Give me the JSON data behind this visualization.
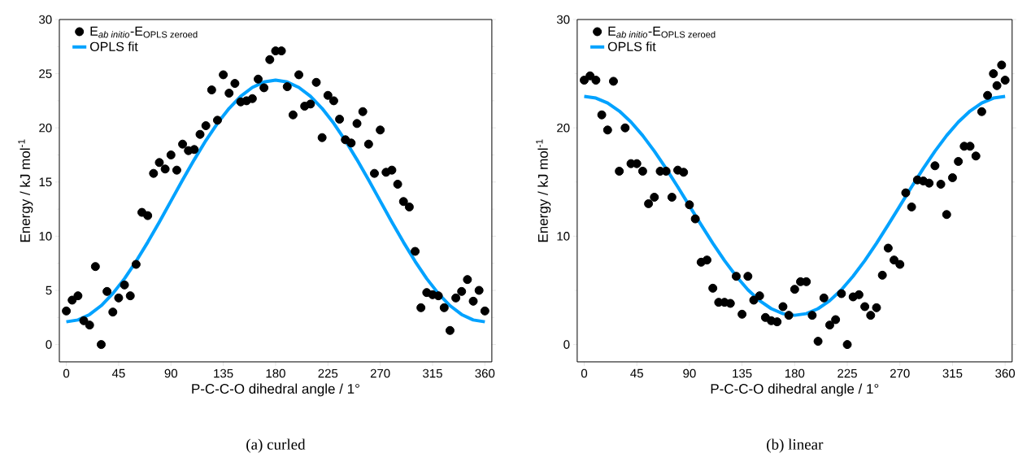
{
  "chart_data": [
    {
      "type": "scatter",
      "xlabel": "P-C-C-O dihedral angle / 1°",
      "ylabel": "Energy / kJ mol$^{-1}$",
      "xlim": [
        -6,
        366
      ],
      "ylim": [
        -1.6,
        30
      ],
      "xticks": [
        0,
        45,
        90,
        135,
        180,
        225,
        270,
        315,
        360
      ],
      "yticks": [
        0,
        5,
        10,
        15,
        20,
        25,
        30
      ],
      "legend": "top left",
      "grid": false,
      "annotations": [
        "(a) curled"
      ],
      "series": [
        {
          "name": "\\text{E}_{\\text{\\itshape ab initio}}\\text{-E}_{\\text{OPLS zeroed}}",
          "marker": "circle",
          "color": "#000000",
          "x": [
            0,
            5,
            10,
            15,
            20,
            25,
            30,
            35,
            40,
            45,
            50,
            55,
            60,
            65,
            70,
            75,
            80,
            85,
            90,
            95,
            100,
            105,
            110,
            115,
            120,
            125,
            130,
            135,
            140,
            145,
            150,
            155,
            160,
            165,
            170,
            175,
            180,
            185,
            190,
            195,
            200,
            205,
            210,
            215,
            220,
            225,
            230,
            235,
            240,
            245,
            250,
            255,
            260,
            265,
            270,
            275,
            280,
            285,
            290,
            295,
            300,
            305,
            310,
            315,
            320,
            325,
            330,
            335,
            340,
            345,
            350,
            355,
            360
          ],
          "values": [
            3.1,
            4.1,
            4.5,
            2.2,
            1.8,
            7.2,
            0.0,
            4.9,
            3.0,
            4.3,
            5.5,
            4.5,
            7.4,
            12.2,
            11.9,
            15.8,
            16.8,
            16.2,
            17.5,
            16.1,
            18.5,
            17.9,
            18.0,
            19.4,
            20.2,
            23.5,
            20.7,
            24.9,
            23.2,
            24.1,
            22.4,
            22.5,
            22.7,
            24.5,
            23.7,
            26.3,
            27.1,
            27.1,
            23.8,
            21.2,
            24.9,
            22.0,
            22.2,
            24.2,
            19.1,
            23.0,
            22.5,
            20.8,
            18.9,
            18.6,
            20.4,
            21.5,
            18.5,
            15.8,
            19.8,
            15.9,
            16.1,
            14.8,
            13.2,
            12.7,
            8.6,
            3.4,
            4.8,
            4.6,
            4.5,
            3.4,
            1.3,
            4.3,
            4.9,
            6.0,
            4.0,
            5.0,
            3.1
          ]
        },
        {
          "name": "OPLS fit",
          "type": "line",
          "marker": "none",
          "line_style": "solid",
          "color": "#00a2ff",
          "x": [
            0,
            10,
            20,
            30,
            40,
            50,
            60,
            70,
            80,
            90,
            100,
            110,
            120,
            130,
            140,
            150,
            160,
            170,
            180,
            190,
            200,
            210,
            220,
            230,
            240,
            250,
            260,
            270,
            280,
            290,
            300,
            310,
            320,
            330,
            340,
            350,
            360
          ],
          "values": [
            2.1,
            2.27,
            2.77,
            3.59,
            4.71,
            6.08,
            7.68,
            9.44,
            11.31,
            13.25,
            15.19,
            17.06,
            18.83,
            20.42,
            21.79,
            22.91,
            23.73,
            24.23,
            24.4,
            24.23,
            23.73,
            22.91,
            21.79,
            20.42,
            18.83,
            17.06,
            15.19,
            13.25,
            11.31,
            9.44,
            7.68,
            6.08,
            4.71,
            3.59,
            2.77,
            2.27,
            2.1
          ]
        }
      ]
    },
    {
      "type": "scatter",
      "xlabel": "P-C-C-O dihedral angle / 1°",
      "ylabel": "Energy / kJ mol$^{-1}$",
      "xlim": [
        -6,
        366
      ],
      "ylim": [
        -1.6,
        30
      ],
      "xticks": [
        0,
        45,
        90,
        135,
        180,
        225,
        270,
        315,
        360
      ],
      "yticks": [
        0,
        10,
        20,
        30
      ],
      "legend": "top left",
      "grid": false,
      "annotations": [
        "(b) linear"
      ],
      "series": [
        {
          "name": "\\text{E}_{\\text{\\itshape ab initio}}\\text{-E}_{\\text{OPLS zeroed}}",
          "marker": "circle",
          "color": "#000000",
          "x": [
            0,
            5,
            10,
            15,
            20,
            25,
            30,
            35,
            40,
            45,
            50,
            55,
            60,
            65,
            70,
            75,
            80,
            85,
            90,
            95,
            100,
            105,
            110,
            115,
            120,
            125,
            130,
            135,
            140,
            145,
            150,
            155,
            160,
            165,
            170,
            175,
            180,
            185,
            190,
            195,
            200,
            205,
            210,
            215,
            220,
            225,
            230,
            235,
            240,
            245,
            250,
            255,
            260,
            265,
            270,
            275,
            280,
            285,
            290,
            295,
            300,
            305,
            310,
            315,
            320,
            325,
            330,
            335,
            340,
            345,
            350,
            353,
            357,
            360
          ],
          "values": [
            24.4,
            24.8,
            24.4,
            21.2,
            19.8,
            24.3,
            16.0,
            20.0,
            16.7,
            16.7,
            16.0,
            13.0,
            13.6,
            16.0,
            16.0,
            13.6,
            16.1,
            15.9,
            12.9,
            11.6,
            7.6,
            7.8,
            5.2,
            3.9,
            3.9,
            3.8,
            6.3,
            2.8,
            6.3,
            4.1,
            4.5,
            2.5,
            2.2,
            2.1,
            3.5,
            2.7,
            5.1,
            5.8,
            5.8,
            2.7,
            0.3,
            4.3,
            1.8,
            2.3,
            4.7,
            0.0,
            4.4,
            4.6,
            3.5,
            2.7,
            3.4,
            6.4,
            8.9,
            7.8,
            7.4,
            14.0,
            12.7,
            15.2,
            15.1,
            14.9,
            16.5,
            14.8,
            12.0,
            15.4,
            16.9,
            18.3,
            18.3,
            17.4,
            21.5,
            23.0,
            25.0,
            23.9,
            25.8,
            24.4
          ]
        },
        {
          "name": "OPLS fit",
          "type": "line",
          "marker": "none",
          "line_style": "solid",
          "color": "#00a2ff",
          "x": [
            0,
            10,
            20,
            30,
            40,
            50,
            60,
            70,
            80,
            90,
            100,
            110,
            120,
            130,
            140,
            150,
            160,
            170,
            180,
            190,
            200,
            210,
            220,
            230,
            240,
            250,
            260,
            270,
            280,
            290,
            300,
            310,
            320,
            330,
            340,
            350,
            360
          ],
          "values": [
            22.9,
            22.75,
            22.29,
            21.55,
            20.54,
            19.29,
            17.85,
            16.25,
            14.55,
            12.8,
            11.05,
            9.35,
            7.75,
            6.31,
            5.06,
            4.05,
            3.31,
            2.85,
            2.7,
            2.85,
            3.31,
            4.05,
            5.06,
            6.31,
            7.75,
            9.35,
            11.05,
            12.8,
            14.55,
            16.25,
            17.85,
            19.29,
            20.54,
            21.55,
            22.29,
            22.75,
            22.9
          ]
        }
      ]
    }
  ]
}
